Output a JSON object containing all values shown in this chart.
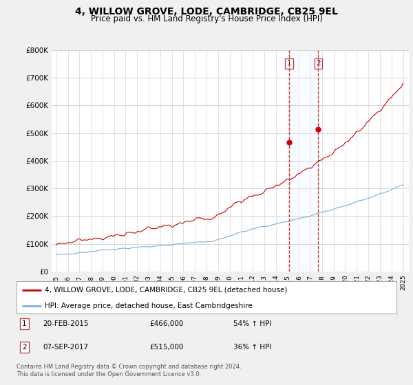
{
  "title": "4, WILLOW GROVE, LODE, CAMBRIDGE, CB25 9EL",
  "subtitle": "Price paid vs. HM Land Registry's House Price Index (HPI)",
  "ylim": [
    0,
    800000
  ],
  "yticks": [
    0,
    100000,
    200000,
    300000,
    400000,
    500000,
    600000,
    700000,
    800000
  ],
  "ytick_labels": [
    "£0",
    "£100K",
    "£200K",
    "£300K",
    "£400K",
    "£500K",
    "£600K",
    "£700K",
    "£800K"
  ],
  "red_line_color": "#cc0000",
  "blue_line_color": "#7aaed6",
  "vline_color": "#cc3333",
  "shade_color": "#ddeeff",
  "sale1_date": "20-FEB-2015",
  "sale1_price": 466000,
  "sale1_pct": "54% ↑ HPI",
  "sale1_year": 2015.12,
  "sale2_date": "07-SEP-2017",
  "sale2_price": 515000,
  "sale2_pct": "36% ↑ HPI",
  "sale2_year": 2017.67,
  "legend_line1": "4, WILLOW GROVE, LODE, CAMBRIDGE, CB25 9EL (detached house)",
  "legend_line2": "HPI: Average price, detached house, East Cambridgeshire",
  "footnote": "Contains HM Land Registry data © Crown copyright and database right 2024.\nThis data is licensed under the Open Government Licence v3.0.",
  "background_color": "#f0f0f0",
  "plot_bg": "#ffffff"
}
